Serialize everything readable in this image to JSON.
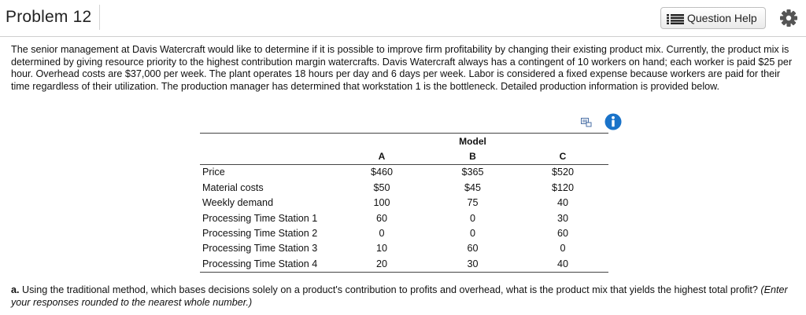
{
  "header": {
    "title": "Problem 12",
    "help_label": "Question Help"
  },
  "intro": "The senior management at Davis Watercraft would like to determine if it is possible to improve firm profitability by changing their existing product mix. Currently, the product mix is determined by giving resource priority to the highest contribution margin watercrafts. Davis Watercraft always has a contingent of 10 workers on hand; each worker is paid $25 per hour. Overhead costs are $37,000 per week. The plant operates 18 hours per day and 6 days per week. Labor is considered a fixed expense because workers are paid for their time regardless of their utilization. The production manager has determined that workstation 1 is the bottleneck. Detailed production information is provided below.",
  "table": {
    "group_header": "Model",
    "columns": [
      "A",
      "B",
      "C"
    ],
    "rows": [
      {
        "label": "Price",
        "values": [
          "$460",
          "$365",
          "$520"
        ]
      },
      {
        "label": "Material costs",
        "values": [
          "$50",
          "$45",
          "$120"
        ]
      },
      {
        "label": "Weekly demand",
        "values": [
          "100",
          "75",
          "40"
        ]
      },
      {
        "label": "Processing Time Station 1",
        "values": [
          "60",
          "0",
          "30"
        ]
      },
      {
        "label": "Processing Time Station 2",
        "values": [
          "0",
          "0",
          "60"
        ]
      },
      {
        "label": "Processing Time Station 3",
        "values": [
          "10",
          "60",
          "0"
        ]
      },
      {
        "label": "Processing Time Station 4",
        "values": [
          "20",
          "30",
          "40"
        ]
      }
    ]
  },
  "question": {
    "marker": "a.",
    "text": "Using the traditional method, which bases decisions solely on a product's contribution to profits and overhead, what is the product mix that yields the highest total profit?",
    "instruction": "(Enter your responses rounded to the nearest whole number.)"
  },
  "colors": {
    "info_blue": "#1a73c9",
    "gear_gray": "#555555",
    "rule": "#444444"
  },
  "icons": [
    "list-icon",
    "gear-icon",
    "print-icon",
    "info-icon"
  ]
}
